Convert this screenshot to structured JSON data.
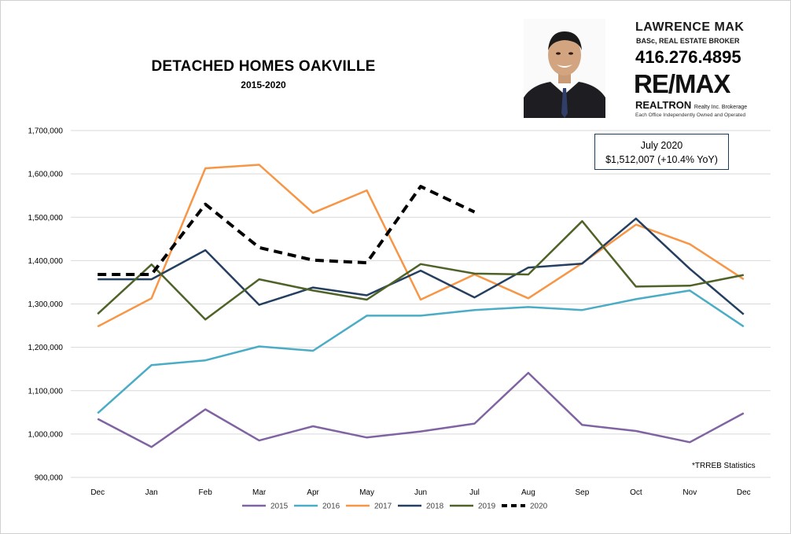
{
  "branding": {
    "agent_name": "LAWRENCE MAK",
    "agent_role": "BASc, REAL ESTATE BROKER",
    "phone": "416.276.4895",
    "brand": "RE/MAX",
    "brokerage": "REALTRON",
    "brokerage_suffix": "Realty Inc. Brokerage",
    "tagline": "Each Office Independently Owned and Operated"
  },
  "annotation": {
    "line1": "July 2020",
    "line2": "$1,512,007  (+10.4% YoY)"
  },
  "note": "*TRREB Statistics",
  "colors": {
    "2015": "#8064a2",
    "2016": "#4bacc6",
    "2017": "#f79646",
    "2018": "#243f60",
    "2019": "#4f6228",
    "2020": "#000000"
  },
  "chart_data": {
    "type": "line",
    "title": "DETACHED HOMES OAKVILLE",
    "subtitle": "2015-2020",
    "categories": [
      "Dec",
      "Jan",
      "Feb",
      "Mar",
      "Apr",
      "May",
      "Jun",
      "Jul",
      "Aug",
      "Sep",
      "Oct",
      "Nov",
      "Dec"
    ],
    "ylim": [
      900000,
      1700000
    ],
    "yticks": [
      "900,000",
      "1,000,000",
      "1,100,000",
      "1,200,000",
      "1,300,000",
      "1,400,000",
      "1,500,000",
      "1,600,000",
      "1,700,000"
    ],
    "grid": true,
    "legend_position": "bottom",
    "series": [
      {
        "name": "2015",
        "values": [
          1035000,
          970000,
          1057000,
          985000,
          1018000,
          992000,
          1006000,
          1024000,
          1141000,
          1021000,
          1007000,
          981000,
          1048000
        ]
      },
      {
        "name": "2016",
        "values": [
          1048000,
          1159000,
          1170000,
          1202000,
          1192000,
          1273000,
          1273000,
          1286000,
          1293000,
          1286000,
          1311000,
          1331000,
          1248000
        ]
      },
      {
        "name": "2017",
        "values": [
          1248000,
          1313000,
          1613000,
          1621000,
          1510000,
          1562000,
          1310000,
          1368000,
          1313000,
          1394000,
          1483000,
          1438000,
          1357000
        ]
      },
      {
        "name": "2018",
        "values": [
          1357000,
          1357000,
          1424000,
          1298000,
          1338000,
          1320000,
          1377000,
          1315000,
          1384000,
          1393000,
          1497000,
          1381000,
          1276000
        ]
      },
      {
        "name": "2019",
        "values": [
          1277000,
          1391000,
          1264000,
          1357000,
          1331000,
          1310000,
          1392000,
          1370000,
          1368000,
          1491000,
          1340000,
          1342000,
          1367000
        ]
      },
      {
        "name": "2020",
        "values": [
          1368000,
          1368000,
          1530000,
          1430000,
          1401000,
          1395000,
          1571000,
          1512000,
          null,
          null,
          null,
          null,
          null
        ],
        "dashed": true
      }
    ]
  }
}
